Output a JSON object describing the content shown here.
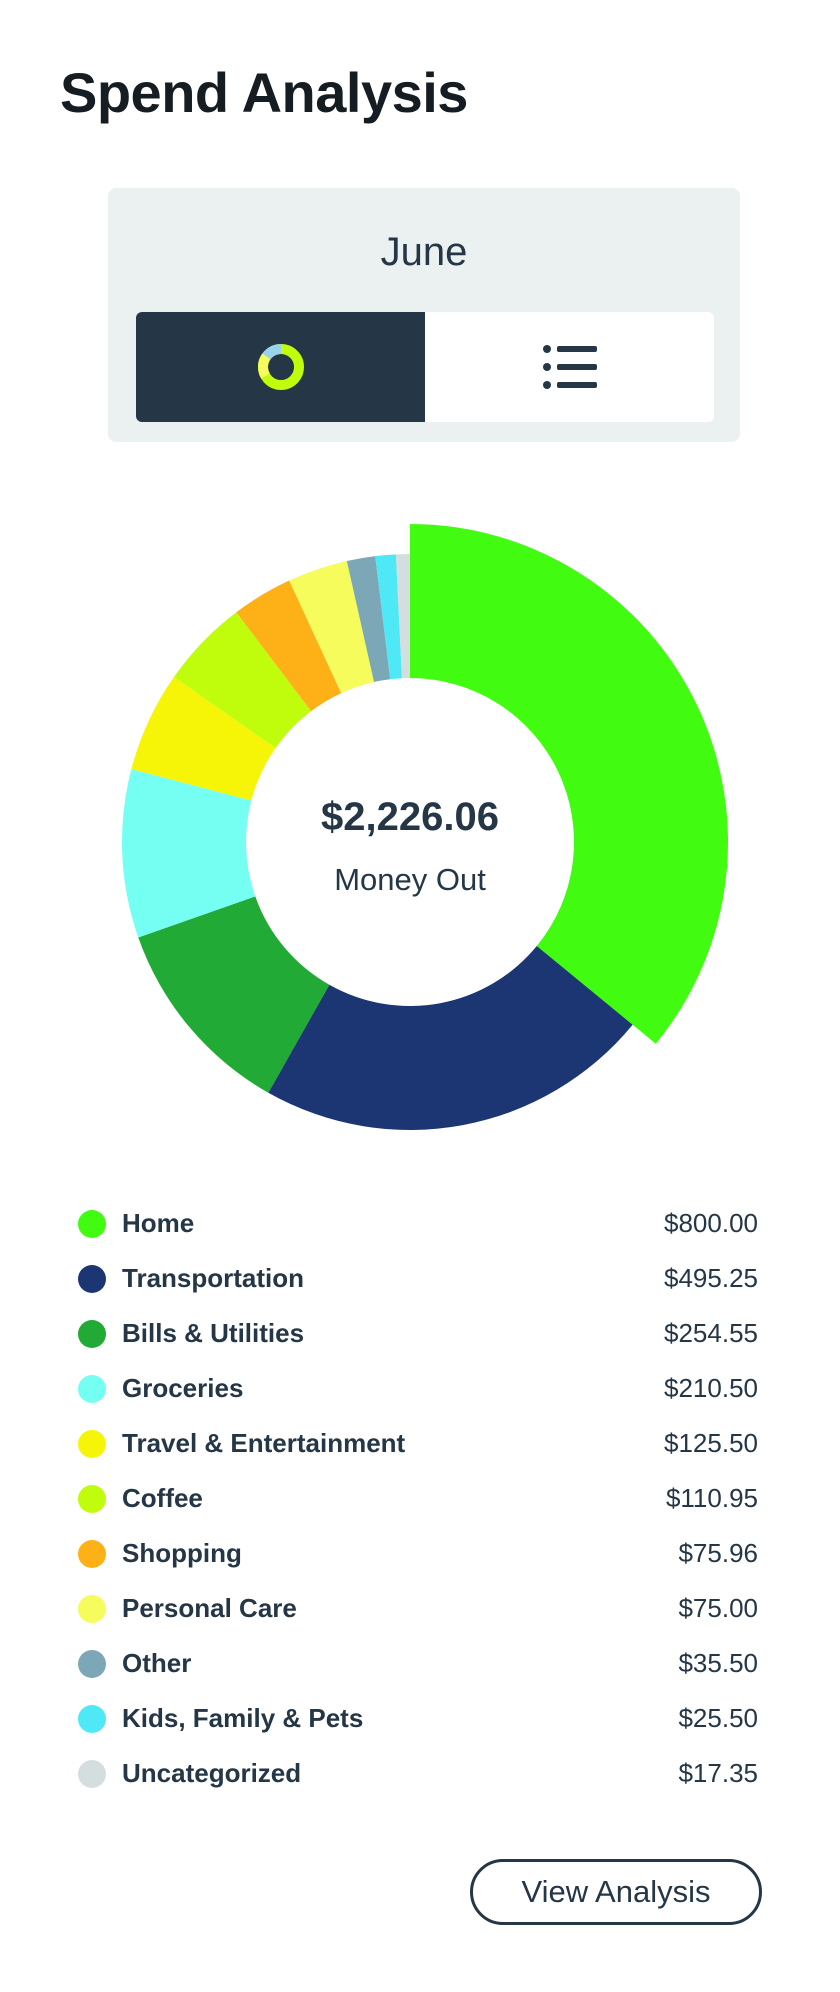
{
  "header": {
    "title": "Spend Analysis"
  },
  "period": {
    "month": "June",
    "view_toggle": [
      {
        "icon": "donut-chart-icon",
        "active": true
      },
      {
        "icon": "list-icon",
        "active": false
      }
    ]
  },
  "summary": {
    "total": "$2,226.06",
    "label": "Money Out"
  },
  "chart_data": {
    "type": "pie",
    "variant": "donut",
    "center_text": "$2,226.06",
    "center_subtext": "Money Out",
    "exploded_slice": "Home",
    "categories": [
      "Home",
      "Transportation",
      "Bills & Utilities",
      "Groceries",
      "Travel & Entertainment",
      "Coffee",
      "Shopping",
      "Personal Care",
      "Other",
      "Kids, Family & Pets",
      "Uncategorized"
    ],
    "values": [
      800.0,
      495.25,
      254.55,
      210.5,
      125.5,
      110.95,
      75.96,
      75.0,
      35.5,
      25.5,
      17.35
    ],
    "colors": [
      "#41fb11",
      "#1c3674",
      "#21aa35",
      "#74fff2",
      "#f6f508",
      "#bffd0c",
      "#fdb117",
      "#f5fc5c",
      "#7ca7b6",
      "#4fe8f6",
      "#d4dede"
    ]
  },
  "categories": [
    {
      "name": "Home",
      "amount": "$800.00",
      "color": "#41fb11"
    },
    {
      "name": "Transportation",
      "amount": "$495.25",
      "color": "#1c3674"
    },
    {
      "name": "Bills & Utilities",
      "amount": "$254.55",
      "color": "#21aa35"
    },
    {
      "name": "Groceries",
      "amount": "$210.50",
      "color": "#74fff2"
    },
    {
      "name": "Travel & Entertainment",
      "amount": "$125.50",
      "color": "#f6f508"
    },
    {
      "name": "Coffee",
      "amount": "$110.95",
      "color": "#bffd0c"
    },
    {
      "name": "Shopping",
      "amount": "$75.96",
      "color": "#fdb117"
    },
    {
      "name": "Personal Care",
      "amount": "$75.00",
      "color": "#f5fc5c"
    },
    {
      "name": "Other",
      "amount": "$35.50",
      "color": "#7ca7b6"
    },
    {
      "name": "Kids, Family & Pets",
      "amount": "$25.50",
      "color": "#4fe8f6"
    },
    {
      "name": "Uncategorized",
      "amount": "$17.35",
      "color": "#d4dede"
    }
  ],
  "actions": {
    "view_analysis": "View Analysis"
  }
}
